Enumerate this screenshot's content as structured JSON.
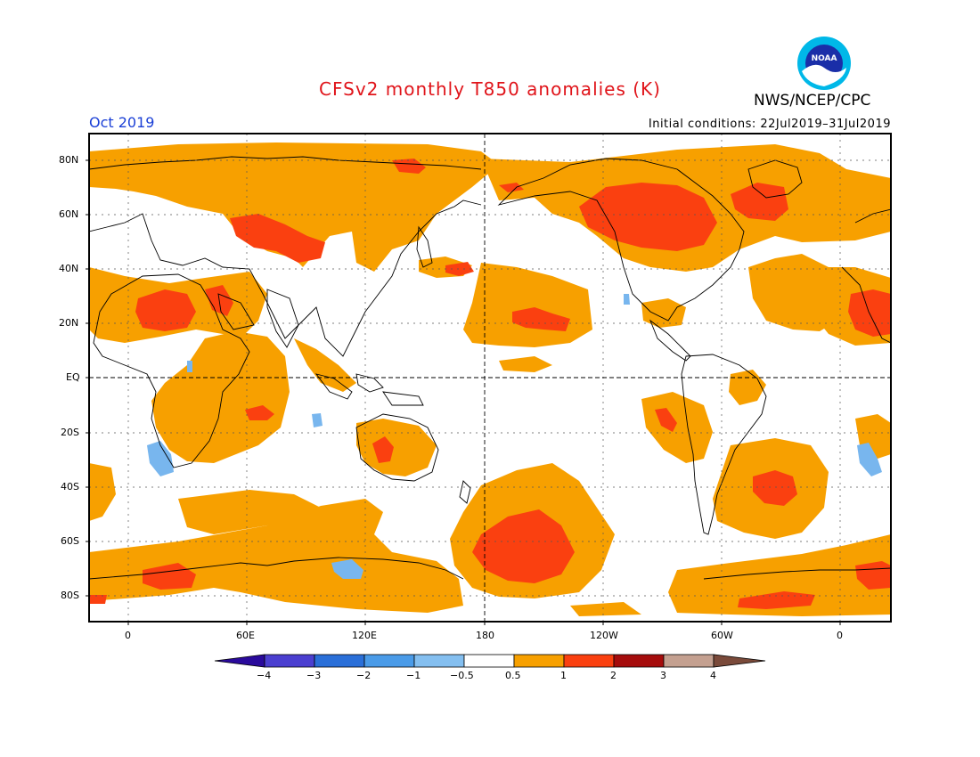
{
  "header": {
    "title": "CFSv2 monthly T850 anomalies (K)",
    "month": "Oct 2019",
    "initial_conditions": "Initial conditions: 22Jul2019–31Jul2019",
    "organization": "NWS/NCEP/CPC",
    "logo_text": "NOAA"
  },
  "map": {
    "projection": "equirectangular, centered 180",
    "lat_labels": [
      "80N",
      "60N",
      "40N",
      "20N",
      "EQ",
      "20S",
      "40S",
      "60S",
      "80S"
    ],
    "lon_labels": [
      "0",
      "60E",
      "120E",
      "180",
      "120W",
      "60W",
      "0"
    ],
    "grid": true
  },
  "colorbar": {
    "labels": [
      "−4",
      "−3",
      "−2",
      "−1",
      "−0.5",
      "0.5",
      "1",
      "2",
      "3",
      "4"
    ],
    "colors": [
      "#2a0a9c",
      "#4b3fd0",
      "#2a6fd8",
      "#4a9be8",
      "#84bff0",
      "#ffffff",
      "#f7a000",
      "#fa4010",
      "#a50c0c",
      "#c4a090",
      "#7a4a3a"
    ]
  },
  "colors": {
    "orange": "#f7a000",
    "red": "#fa4010",
    "blue": "#78b6ee",
    "title": "#e0141a",
    "date": "#1a3fd6"
  }
}
